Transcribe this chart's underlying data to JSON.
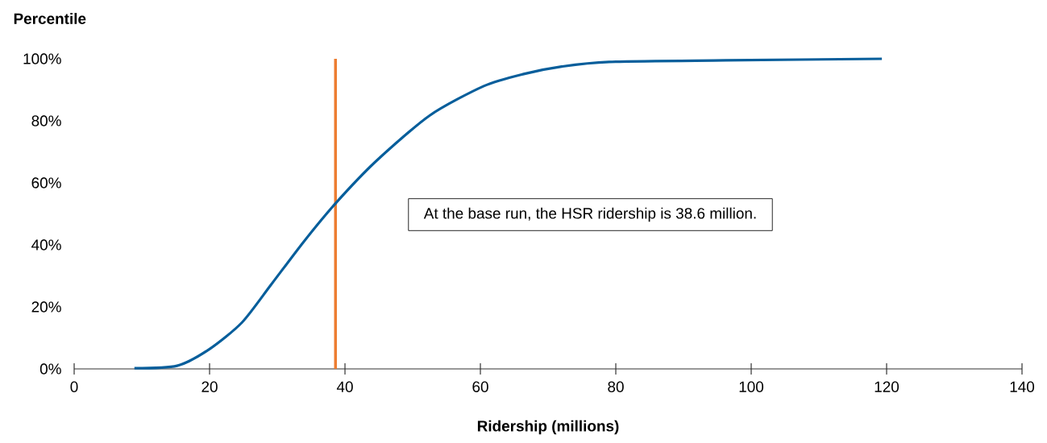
{
  "chart_data": {
    "type": "line",
    "xlabel": "Ridership (millions)",
    "ylabel": "Percentile",
    "x": [
      8.9,
      15.2,
      20.0,
      24.8,
      29.1,
      33.9,
      38.7,
      44.6,
      52.5,
      60.5,
      66.4,
      72.0,
      79.0,
      96.2,
      119.3
    ],
    "series": [
      {
        "color": "#075e9b",
        "values": [
          0.2,
          1.0,
          6.4,
          15,
          27.2,
          41,
          53.6,
          67,
          81.7,
          91.2,
          95.1,
          97.5,
          99.0,
          99.5,
          100
        ]
      }
    ],
    "xlim": [
      0,
      140
    ],
    "xticks": [
      0,
      20,
      40,
      60,
      80,
      100,
      120,
      140
    ],
    "ylim": [
      0,
      100
    ],
    "yticks": [
      {
        "value": 0,
        "label": "0%"
      },
      {
        "value": 20,
        "label": "20%"
      },
      {
        "value": 40,
        "label": "40%"
      },
      {
        "value": 60,
        "label": "60%"
      },
      {
        "value": 80,
        "label": "80%"
      },
      {
        "value": 100,
        "label": "100%"
      }
    ],
    "ref_lines": [
      {
        "axis": "x",
        "value": 38.6,
        "color": "#ed7d31"
      }
    ],
    "annotations": [
      "At the base run, the HSR ridership is 38.6 million."
    ],
    "grid": false,
    "marker": "none",
    "line_style": "solid"
  }
}
